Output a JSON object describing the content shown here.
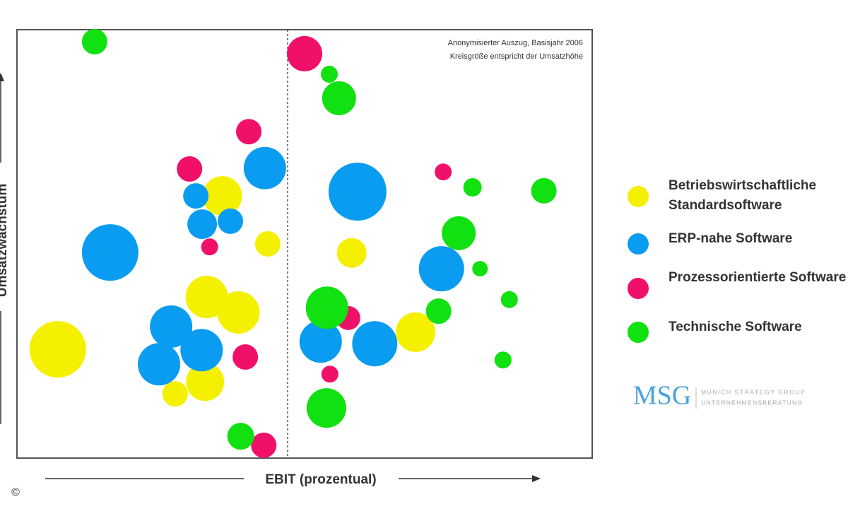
{
  "chart_data": {
    "type": "bubble",
    "annotations": [
      "Anonymisierter Auszug, Basisjahr 2006",
      "Kreisgröße entspricht der Umsatzhöhe"
    ],
    "x_label": "EBIT (prozentual)",
    "y_label": "Umsatzwachstum",
    "xlim": [
      0,
      100
    ],
    "ylim": [
      0,
      100
    ],
    "divider_x": 47.05,
    "series": [
      {
        "name": "Betriebswirtschaftliche Standardsoftware",
        "color": "#f5f000",
        "x": [
          7.1,
          35.7,
          43.6,
          33.0,
          38.5,
          32.7,
          27.5,
          58.2,
          69.3
        ],
        "y": [
          25.4,
          61.2,
          50.0,
          37.6,
          34.0,
          17.8,
          15.0,
          47.9,
          29.4
        ],
        "sizes": [
          40,
          28,
          18,
          30,
          30,
          27,
          18,
          21,
          28
        ]
      },
      {
        "name": "ERP-nahe Software",
        "color": "#0a9cf0",
        "x": [
          16.2,
          43.1,
          31.1,
          32.2,
          37.1,
          26.8,
          32.1,
          24.7,
          59.2,
          73.8,
          52.8,
          62.2
        ],
        "y": [
          48.0,
          67.7,
          61.2,
          54.6,
          55.3,
          30.7,
          25.2,
          21.9,
          62.2,
          44.2,
          27.2,
          26.7
        ],
        "sizes": [
          40,
          30,
          18,
          21,
          18,
          30,
          30,
          30,
          41,
          32,
          30,
          32
        ]
      },
      {
        "name": "Prozessorientierte Software",
        "color": "#f0106a",
        "x": [
          50.0,
          40.3,
          30.0,
          33.5,
          39.7,
          57.6,
          54.4,
          74.1,
          42.9
        ],
        "y": [
          94.4,
          76.2,
          67.5,
          49.3,
          23.6,
          32.7,
          19.6,
          66.8,
          3.0
        ],
        "sizes": [
          25,
          18,
          18,
          12,
          18,
          17,
          12,
          12,
          18
        ]
      },
      {
        "name": "Technische Software",
        "color": "#11e011",
        "x": [
          13.5,
          54.3,
          56.0,
          79.2,
          91.6,
          76.8,
          80.5,
          85.6,
          73.3,
          53.9,
          84.5,
          53.8,
          38.9
        ],
        "y": [
          97.2,
          89.6,
          84.0,
          63.2,
          62.4,
          52.5,
          44.2,
          37.0,
          34.3,
          35.1,
          22.9,
          11.7,
          5.1
        ],
        "sizes": [
          18,
          12,
          24,
          13,
          18,
          24,
          11,
          12,
          18,
          30,
          12,
          28,
          19
        ]
      }
    ]
  },
  "footer": {
    "copyright": "©",
    "logo": "MSG",
    "company": "MUNICH STRATEGY GROUP",
    "tagline": "UNTERNEHMENSBERATUNG"
  }
}
